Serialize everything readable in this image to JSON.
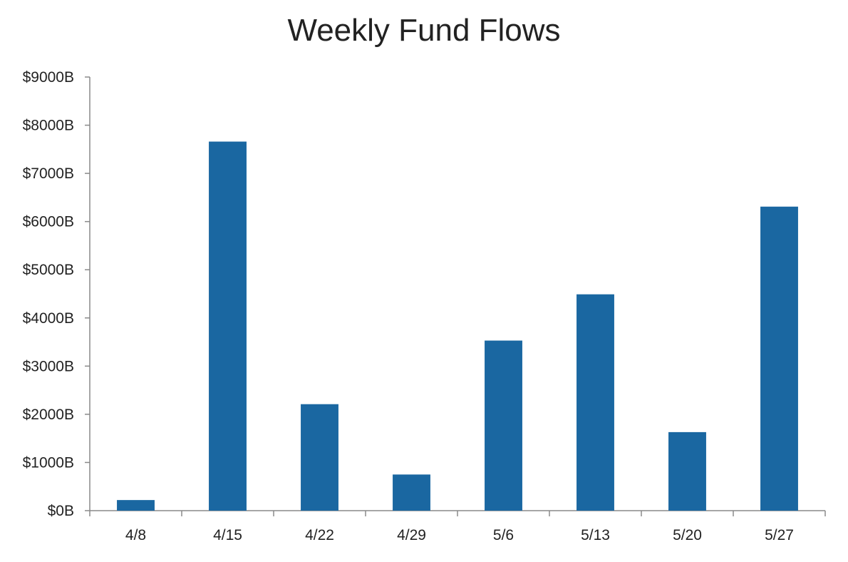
{
  "chart_data": {
    "type": "bar",
    "title": "Weekly Fund Flows",
    "xlabel": "",
    "ylabel": "",
    "categories": [
      "4/8",
      "4/15",
      "4/22",
      "4/29",
      "5/6",
      "5/13",
      "5/20",
      "5/27"
    ],
    "values": [
      220,
      7660,
      2210,
      750,
      3530,
      4490,
      1630,
      6310
    ],
    "ylim": [
      0,
      9000
    ],
    "yticks": [
      0,
      1000,
      2000,
      3000,
      4000,
      5000,
      6000,
      7000,
      8000,
      9000
    ],
    "ytick_labels": [
      "$0B",
      "$1000B",
      "$2000B",
      "$3000B",
      "$4000B",
      "$5000B",
      "$6000B",
      "$7000B",
      "$8000B",
      "$9000B"
    ],
    "grid": false,
    "legend": "none",
    "bar_color": "#1a67a1",
    "axis_color": "#8a8a8a"
  }
}
